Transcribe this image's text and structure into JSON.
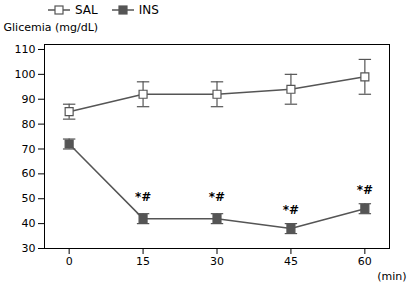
{
  "chart_data": {
    "type": "line",
    "x": [
      0,
      15,
      30,
      45,
      60
    ],
    "xlabel": "(min)",
    "ylabel": "Glicemia (mg/dL)",
    "series": [
      {
        "name": "SAL",
        "color": "#555555",
        "marker": "open-square",
        "values": [
          85,
          92,
          92,
          94,
          99
        ],
        "yerr": [
          3,
          5,
          5,
          6,
          7
        ]
      },
      {
        "name": "INS",
        "color": "#555555",
        "marker": "square",
        "values": [
          72,
          42,
          42,
          38,
          46
        ],
        "yerr": [
          2,
          2,
          2,
          2,
          2
        ]
      }
    ],
    "xlim": [
      -5,
      65
    ],
    "xticks": [
      0,
      15,
      30,
      45,
      60
    ],
    "ylim": [
      30,
      112
    ],
    "yticks": [
      30,
      40,
      50,
      60,
      70,
      80,
      90,
      100,
      110
    ],
    "annotations": [
      {
        "text": "*#",
        "x": 15,
        "y": 49
      },
      {
        "text": "*#",
        "x": 30,
        "y": 49
      },
      {
        "text": "*#",
        "x": 45,
        "y": 44
      },
      {
        "text": "*#",
        "x": 60,
        "y": 52
      }
    ],
    "grid": false,
    "legend": "upper left"
  }
}
